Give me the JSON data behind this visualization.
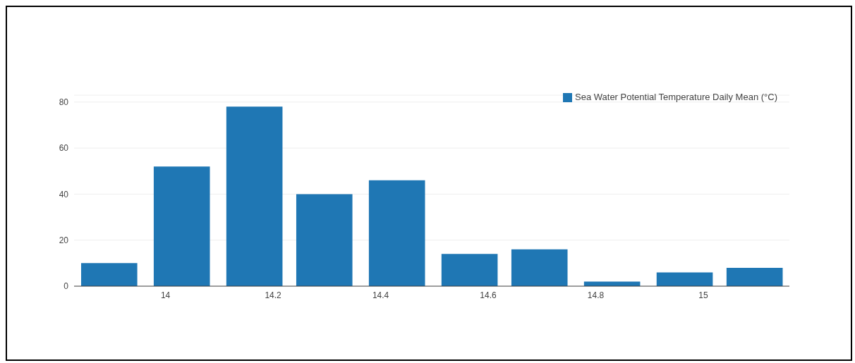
{
  "chart_data": {
    "type": "histogram",
    "bins": [
      13.83,
      13.96,
      14.1,
      14.23,
      14.36,
      14.5,
      14.63,
      14.76,
      14.9,
      15.03,
      15.16
    ],
    "series": [
      {
        "name": "Sea Water Potential Temperature Daily Mean (°C)",
        "color": "#1f77b4",
        "values": [
          10,
          52,
          78,
          40,
          46,
          14,
          16,
          2,
          6,
          8
        ]
      }
    ],
    "xlim": [
      13.83,
      15.16
    ],
    "xticks": [
      14,
      14.2,
      14.4,
      14.6,
      14.8,
      15
    ],
    "ylim": [
      0,
      83
    ],
    "yticks": [
      0,
      20,
      40,
      60,
      80
    ],
    "grid": "y",
    "legend": "top right"
  }
}
